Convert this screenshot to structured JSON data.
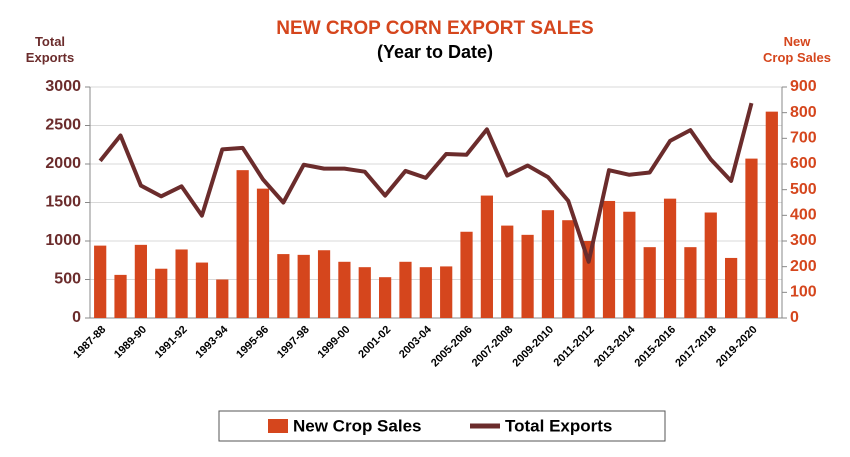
{
  "chart_data": {
    "type": "bar-line",
    "title": "NEW CROP CORN EXPORT SALES",
    "subtitle": "(Year to Date)",
    "y_label": "Total\nExports",
    "y2_label": "New\nCrop Sales",
    "categories": [
      "1987-88",
      null,
      "1989-90",
      null,
      "1991-92",
      null,
      "1993-94",
      null,
      "1995-96",
      null,
      "1997-98",
      null,
      "1999-00",
      null,
      "2001-02",
      null,
      "2003-04",
      null,
      "2005-2006",
      null,
      "2007-2008",
      null,
      "2009-2010",
      null,
      "2011-2012",
      null,
      "2013-2014",
      null,
      "2015-2016",
      null,
      "2017-2018",
      null,
      "2019-2020",
      null
    ],
    "series": [
      {
        "name": "New Crop Sales",
        "type": "bar",
        "axis": "y2",
        "color": "#d5461d",
        "values": [
          282,
          168,
          285,
          192,
          267,
          216,
          150,
          576,
          504,
          249,
          246,
          264,
          219,
          198,
          159,
          219,
          198,
          201,
          336,
          477,
          360,
          324,
          420,
          381,
          300,
          456,
          414,
          276,
          465,
          276,
          411,
          234,
          621,
          804
        ]
      },
      {
        "name": "Total Exports",
        "type": "line",
        "axis": "y",
        "color": "#6b2c2c",
        "values": [
          2040,
          2370,
          1720,
          1580,
          1710,
          1330,
          2190,
          2210,
          1800,
          1500,
          1990,
          1940,
          1940,
          1900,
          1590,
          1910,
          1820,
          2130,
          2120,
          2450,
          1850,
          1980,
          1830,
          1520,
          730,
          1920,
          1860,
          1890,
          2300,
          2440,
          2060,
          1780,
          2790,
          null
        ]
      }
    ],
    "ylim": [
      0,
      3000
    ],
    "yticks": [
      0,
      500,
      1000,
      1500,
      2000,
      2500,
      3000
    ],
    "y2lim": [
      0,
      900
    ],
    "y2ticks": [
      0,
      100,
      200,
      300,
      400,
      500,
      600,
      700,
      800,
      900
    ],
    "y_color": "#6b2c2c",
    "y2_color": "#d5461d",
    "title_color": "#d5461d",
    "grid": true,
    "legend": "bottom"
  }
}
